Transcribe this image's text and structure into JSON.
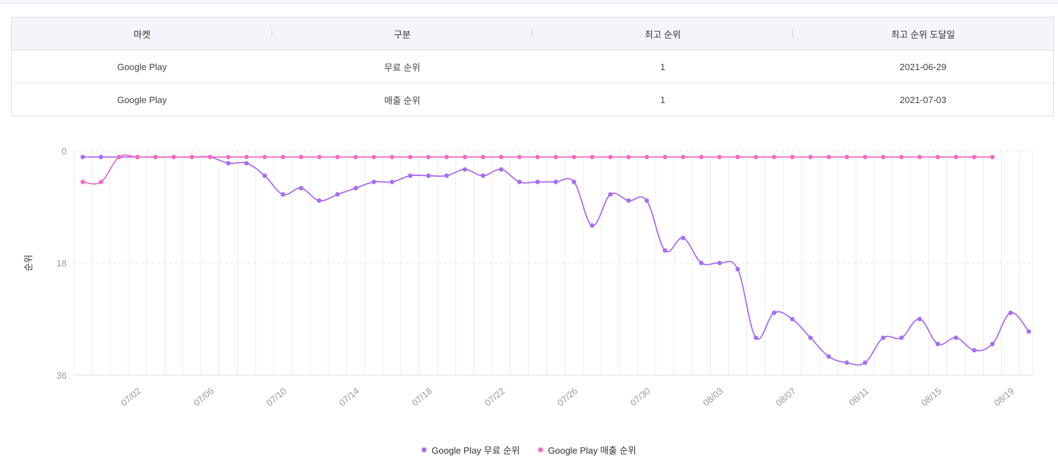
{
  "table": {
    "headers": [
      "마켓",
      "구분",
      "최고 순위",
      "최고 순위 도달일"
    ],
    "rows": [
      [
        "Google Play",
        "무료 순위",
        "1",
        "2021-06-29"
      ],
      [
        "Google Play",
        "매출 순위",
        "1",
        "2021-07-03"
      ]
    ]
  },
  "chart_data": {
    "type": "line",
    "ylabel": "순위",
    "ylim": [
      36,
      0
    ],
    "yticks": [
      0,
      18,
      36
    ],
    "y_reversed": true,
    "grid": true,
    "legend_position": "bottom-center",
    "x_start": "2021-06-29",
    "x_end": "2021-08-20",
    "xticks": [
      "07/02",
      "07/06",
      "07/10",
      "07/14",
      "07/18",
      "07/22",
      "07/26",
      "07/30",
      "08/03",
      "08/07",
      "08/11",
      "08/15",
      "08/19"
    ],
    "series": [
      {
        "name": "Google Play 무료 순위",
        "color": "#a66ef2",
        "values": [
          1,
          1,
          1,
          1,
          1,
          1,
          1,
          1,
          2,
          2,
          4,
          7,
          6,
          8,
          7,
          6,
          5,
          5,
          4,
          4,
          4,
          3,
          4,
          3,
          5,
          5,
          5,
          5,
          12,
          7,
          8,
          8,
          16,
          14,
          18,
          18,
          19,
          30,
          26,
          27,
          30,
          33,
          34,
          34,
          30,
          30,
          27,
          31,
          30,
          32,
          31,
          26,
          29
        ]
      },
      {
        "name": "Google Play 매출 순위",
        "color": "#f06cc0",
        "values": [
          5,
          5,
          1,
          1,
          1,
          1,
          1,
          1,
          1,
          1,
          1,
          1,
          1,
          1,
          1,
          1,
          1,
          1,
          1,
          1,
          1,
          1,
          1,
          1,
          1,
          1,
          1,
          1,
          1,
          1,
          1,
          1,
          1,
          1,
          1,
          1,
          1,
          1,
          1,
          1,
          1,
          1,
          1,
          1,
          1,
          1,
          1,
          1,
          1,
          1,
          1
        ]
      }
    ]
  }
}
